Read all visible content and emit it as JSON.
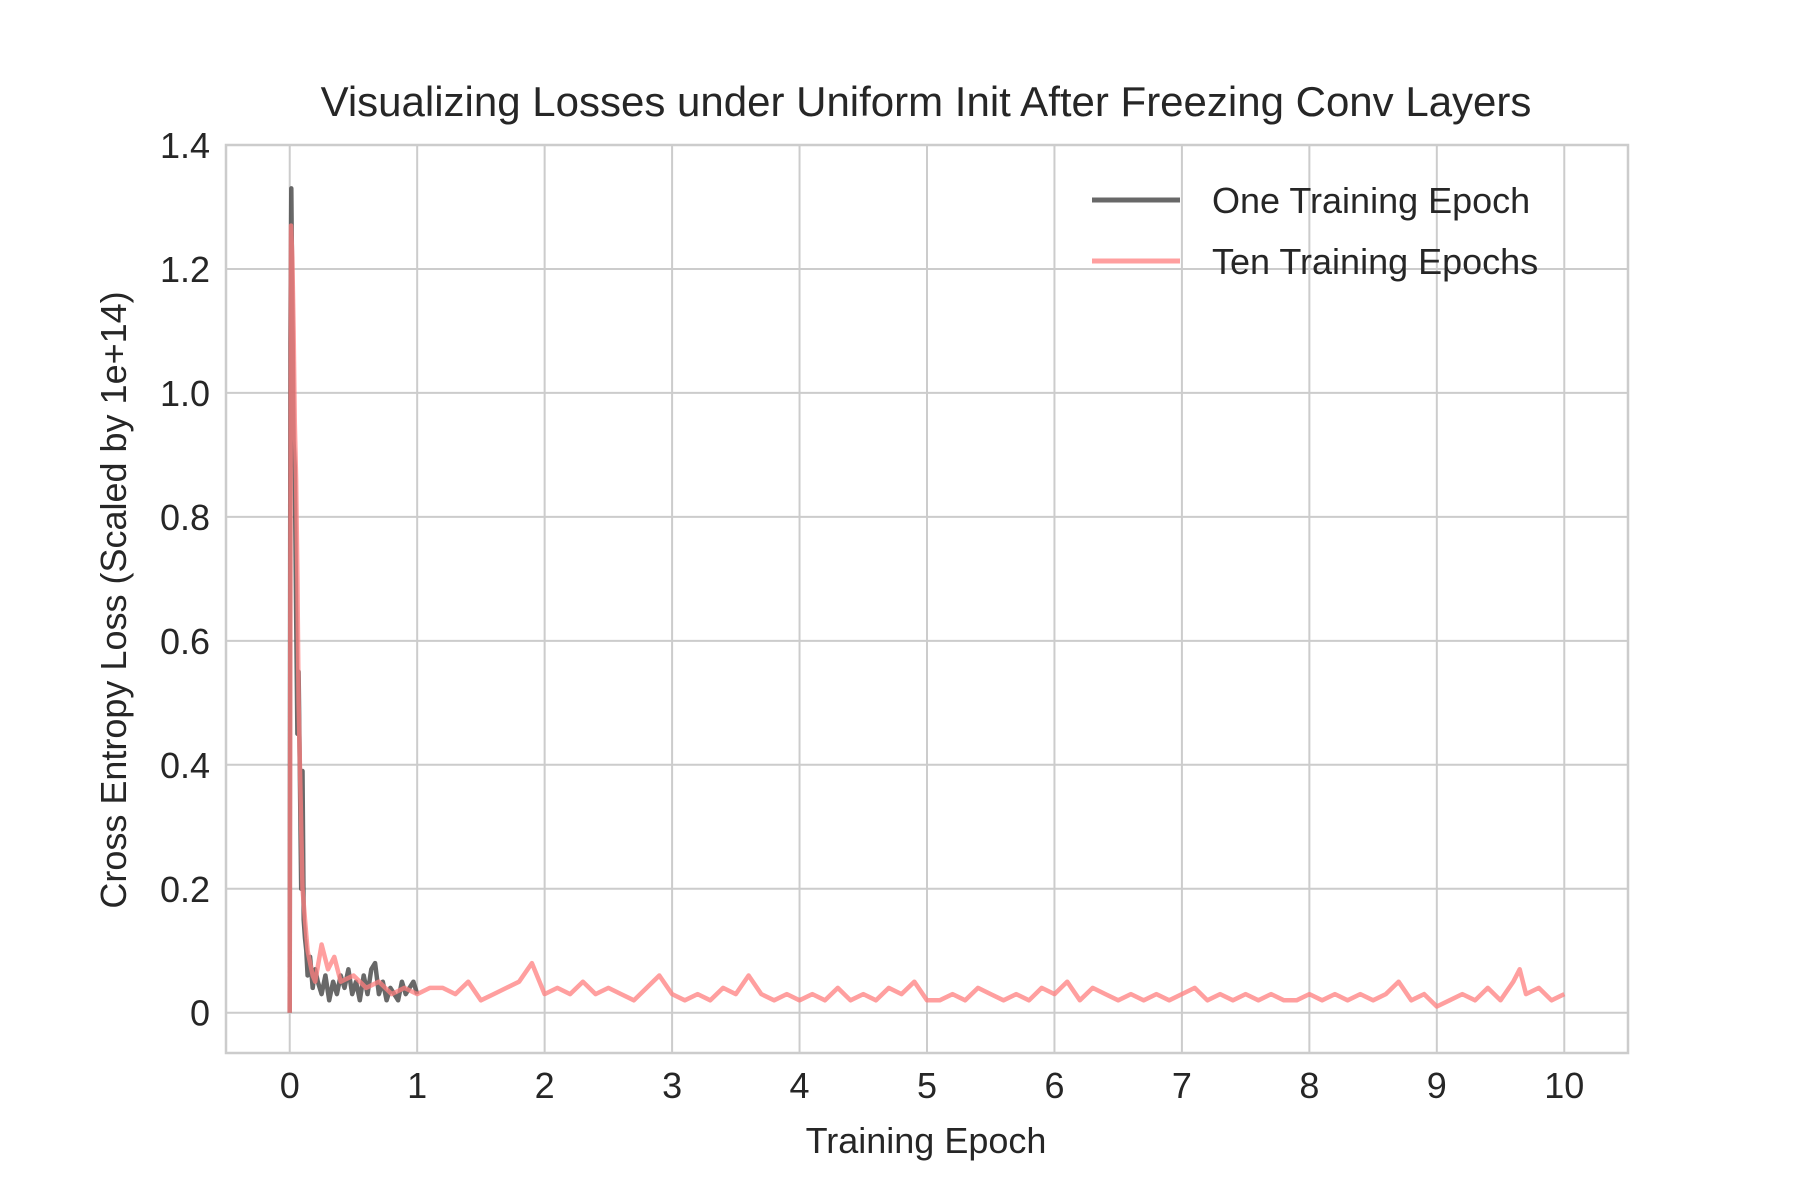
{
  "chart_data": {
    "type": "line",
    "title": "Visualizing Losses under Uniform Init After Freezing Conv Layers",
    "xlabel": "Training Epoch",
    "ylabel": "Cross Entropy Loss (Scaled by 1e+14)",
    "xlim": [
      -0.5,
      10.5
    ],
    "ylim": [
      -0.065,
      1.4
    ],
    "x_ticks": [
      0,
      1,
      2,
      3,
      4,
      5,
      6,
      7,
      8,
      9,
      10
    ],
    "x_tick_labels": [
      "0",
      "1",
      "2",
      "3",
      "4",
      "5",
      "6",
      "7",
      "8",
      "9",
      "10"
    ],
    "y_ticks": [
      0,
      0.2,
      0.4,
      0.6,
      0.8,
      1.0,
      1.2,
      1.4
    ],
    "y_tick_labels": [
      "0",
      "0.2",
      "0.4",
      "0.6",
      "0.8",
      "1.0",
      "1.2",
      "1.4"
    ],
    "grid": true,
    "legend_position": "top-right",
    "series": [
      {
        "name": "One Training Epoch",
        "color": "#4d4d4d",
        "x": [
          0,
          0.005,
          0.012,
          0.02,
          0.03,
          0.04,
          0.05,
          0.06,
          0.07,
          0.08,
          0.09,
          0.1,
          0.11,
          0.12,
          0.13,
          0.14,
          0.16,
          0.18,
          0.2,
          0.22,
          0.25,
          0.28,
          0.31,
          0.34,
          0.37,
          0.4,
          0.43,
          0.46,
          0.49,
          0.52,
          0.55,
          0.58,
          0.61,
          0.64,
          0.67,
          0.7,
          0.73,
          0.76,
          0.79,
          0.82,
          0.85,
          0.88,
          0.91,
          0.94,
          0.97,
          1.0
        ],
        "y": [
          0,
          1.08,
          1.33,
          1.15,
          0.92,
          0.88,
          0.65,
          0.45,
          0.55,
          0.38,
          0.2,
          0.39,
          0.15,
          0.12,
          0.1,
          0.06,
          0.09,
          0.04,
          0.07,
          0.05,
          0.03,
          0.06,
          0.02,
          0.05,
          0.03,
          0.06,
          0.04,
          0.07,
          0.03,
          0.05,
          0.02,
          0.06,
          0.03,
          0.07,
          0.08,
          0.03,
          0.05,
          0.02,
          0.04,
          0.03,
          0.02,
          0.05,
          0.03,
          0.04,
          0.05,
          0.03
        ]
      },
      {
        "name": "Ten Training Epochs",
        "color": "#ff7f7f",
        "x": [
          0,
          0.01,
          0.02,
          0.03,
          0.04,
          0.05,
          0.06,
          0.07,
          0.08,
          0.09,
          0.1,
          0.12,
          0.14,
          0.16,
          0.18,
          0.2,
          0.25,
          0.3,
          0.35,
          0.4,
          0.5,
          0.6,
          0.7,
          0.8,
          0.9,
          1.0,
          1.1,
          1.2,
          1.3,
          1.4,
          1.5,
          1.6,
          1.7,
          1.8,
          1.9,
          2.0,
          2.1,
          2.2,
          2.3,
          2.4,
          2.5,
          2.6,
          2.7,
          2.8,
          2.9,
          3.0,
          3.1,
          3.2,
          3.3,
          3.4,
          3.5,
          3.6,
          3.7,
          3.8,
          3.9,
          4.0,
          4.1,
          4.2,
          4.3,
          4.4,
          4.5,
          4.6,
          4.7,
          4.8,
          4.9,
          5.0,
          5.1,
          5.2,
          5.3,
          5.4,
          5.5,
          5.6,
          5.7,
          5.8,
          5.9,
          6.0,
          6.1,
          6.2,
          6.3,
          6.4,
          6.5,
          6.6,
          6.7,
          6.8,
          6.9,
          7.0,
          7.1,
          7.2,
          7.3,
          7.4,
          7.5,
          7.6,
          7.7,
          7.8,
          7.9,
          8.0,
          8.1,
          8.2,
          8.3,
          8.4,
          8.5,
          8.6,
          8.7,
          8.8,
          8.9,
          9.0,
          9.1,
          9.2,
          9.3,
          9.4,
          9.5,
          9.6,
          9.65,
          9.7,
          9.8,
          9.9,
          10.0
        ],
        "y": [
          0,
          1.27,
          1.22,
          1.1,
          0.95,
          0.86,
          0.7,
          0.5,
          0.4,
          0.3,
          0.2,
          0.15,
          0.1,
          0.08,
          0.06,
          0.05,
          0.11,
          0.07,
          0.09,
          0.05,
          0.06,
          0.04,
          0.05,
          0.03,
          0.04,
          0.03,
          0.04,
          0.04,
          0.03,
          0.05,
          0.02,
          0.03,
          0.04,
          0.05,
          0.08,
          0.03,
          0.04,
          0.03,
          0.05,
          0.03,
          0.04,
          0.03,
          0.02,
          0.04,
          0.06,
          0.03,
          0.02,
          0.03,
          0.02,
          0.04,
          0.03,
          0.06,
          0.03,
          0.02,
          0.03,
          0.02,
          0.03,
          0.02,
          0.04,
          0.02,
          0.03,
          0.02,
          0.04,
          0.03,
          0.05,
          0.02,
          0.02,
          0.03,
          0.02,
          0.04,
          0.03,
          0.02,
          0.03,
          0.02,
          0.04,
          0.03,
          0.05,
          0.02,
          0.04,
          0.03,
          0.02,
          0.03,
          0.02,
          0.03,
          0.02,
          0.03,
          0.04,
          0.02,
          0.03,
          0.02,
          0.03,
          0.02,
          0.03,
          0.02,
          0.02,
          0.03,
          0.02,
          0.03,
          0.02,
          0.03,
          0.02,
          0.03,
          0.05,
          0.02,
          0.03,
          0.01,
          0.02,
          0.03,
          0.02,
          0.04,
          0.02,
          0.05,
          0.07,
          0.03,
          0.04,
          0.02,
          0.03
        ]
      }
    ]
  }
}
